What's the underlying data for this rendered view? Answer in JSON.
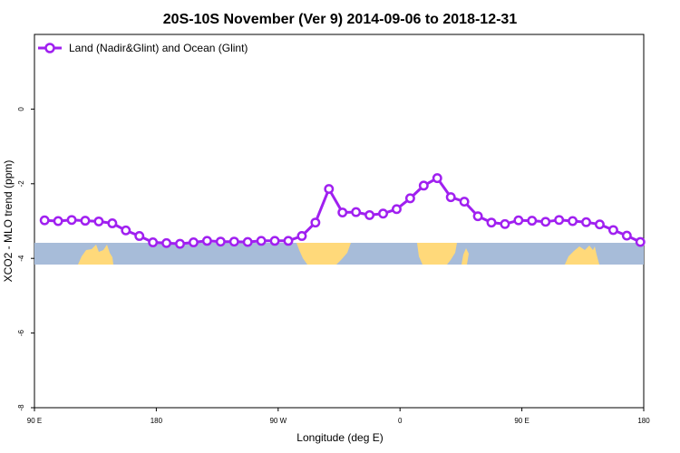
{
  "chart_data": {
    "type": "line",
    "title": "20S-10S November (Ver 9)   2014-09-06 to 2018-12-31",
    "xlabel": "Longitude (deg E)",
    "ylabel": "XCO2 - MLO trend (ppm)",
    "xlim": [
      90,
      540
    ],
    "ylim": [
      -8,
      2
    ],
    "x_ticks": [
      {
        "value": 90,
        "label": "90 E"
      },
      {
        "value": 180,
        "label": "180"
      },
      {
        "value": 270,
        "label": "90 W"
      },
      {
        "value": 360,
        "label": "0"
      },
      {
        "value": 450,
        "label": "90 E"
      },
      {
        "value": 540,
        "label": "180"
      }
    ],
    "y_ticks": [
      {
        "value": 0,
        "label": "0"
      },
      {
        "value": -2,
        "label": "-2"
      },
      {
        "value": -4,
        "label": "-4"
      },
      {
        "value": -6,
        "label": "-6"
      },
      {
        "value": -8,
        "label": "-8"
      }
    ],
    "grid": false,
    "legend_position": "top-left",
    "colors": {
      "series": "#a020f0",
      "ocean": "#a7bcd9",
      "land": "#ffd97a"
    },
    "series": [
      {
        "name": "Land (Nadir&Glint) and Ocean (Glint)",
        "x": [
          97.5,
          107.5,
          117.5,
          127.5,
          137.5,
          147.5,
          157.5,
          167.5,
          177.5,
          187.5,
          197.5,
          207.5,
          217.5,
          227.5,
          237.5,
          247.5,
          257.5,
          267.5,
          277.5,
          287.5,
          297.5,
          307.5,
          317.5,
          327.5,
          337.5,
          347.5,
          357.5,
          367.5,
          377.5,
          387.5,
          397.5,
          407.5,
          417.5,
          427.5,
          437.5,
          447.5,
          457.5,
          467.5,
          477.5,
          487.5,
          497.5,
          507.5,
          517.5,
          527.5,
          537.5
        ],
        "values": [
          -2.98,
          -3.0,
          -2.97,
          -2.99,
          -3.01,
          -3.06,
          -3.25,
          -3.4,
          -3.57,
          -3.59,
          -3.61,
          -3.57,
          -3.53,
          -3.55,
          -3.55,
          -3.56,
          -3.53,
          -3.53,
          -3.53,
          -3.4,
          -3.04,
          -2.14,
          -2.77,
          -2.76,
          -2.84,
          -2.8,
          -2.68,
          -2.39,
          -2.05,
          -1.85,
          -2.36,
          -2.48,
          -2.87,
          -3.04,
          -3.08,
          -2.98,
          -2.99,
          -3.02,
          -2.97,
          -3.0,
          -3.03,
          -3.09,
          -3.24,
          -3.39,
          -3.56
        ]
      }
    ]
  }
}
